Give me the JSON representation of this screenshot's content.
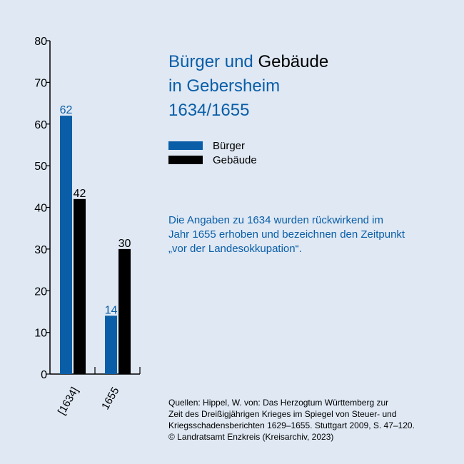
{
  "title": {
    "word_buerger": "Bürger",
    "word_und": "und",
    "word_gebaeude": "Gebäude",
    "line2": "in Gebersheim",
    "line3": "1634/1655"
  },
  "note": {
    "line1": "Die Angaben zu 1634 wurden rückwirkend im",
    "line2": "Jahr 1655 erhoben und bezeichnen den Zeitpunkt",
    "line3": "„vor der Landesokkupation“."
  },
  "sources": {
    "line1": "Quellen: Hippel, W. von: Das Herzogtum Württemberg zur",
    "line2": "Zeit des Dreißigjährigen Krieges im Spiegel von Steuer- und",
    "line3": "Kriegsschadensberichten 1629–1655. Stuttgart 2009, S. 47–120.",
    "line4": "© Landratsamt Enzkreis (Kreisarchiv, 2023)"
  },
  "colors": {
    "background": "#dfe8f3",
    "buerger": "#0a5ea8",
    "gebaeude": "#000000"
  },
  "chart_data": {
    "type": "bar",
    "categories": [
      "[1634]",
      "1655"
    ],
    "series": [
      {
        "name": "Bürger",
        "values": [
          62,
          14
        ],
        "color": "#0a5ea8"
      },
      {
        "name": "Gebäude",
        "values": [
          42,
          30
        ],
        "color": "#000000"
      }
    ],
    "ylim": [
      0,
      80
    ],
    "yticks": [
      0,
      10,
      20,
      30,
      40,
      50,
      60,
      70,
      80
    ],
    "legend_position": "right",
    "grid": false
  }
}
